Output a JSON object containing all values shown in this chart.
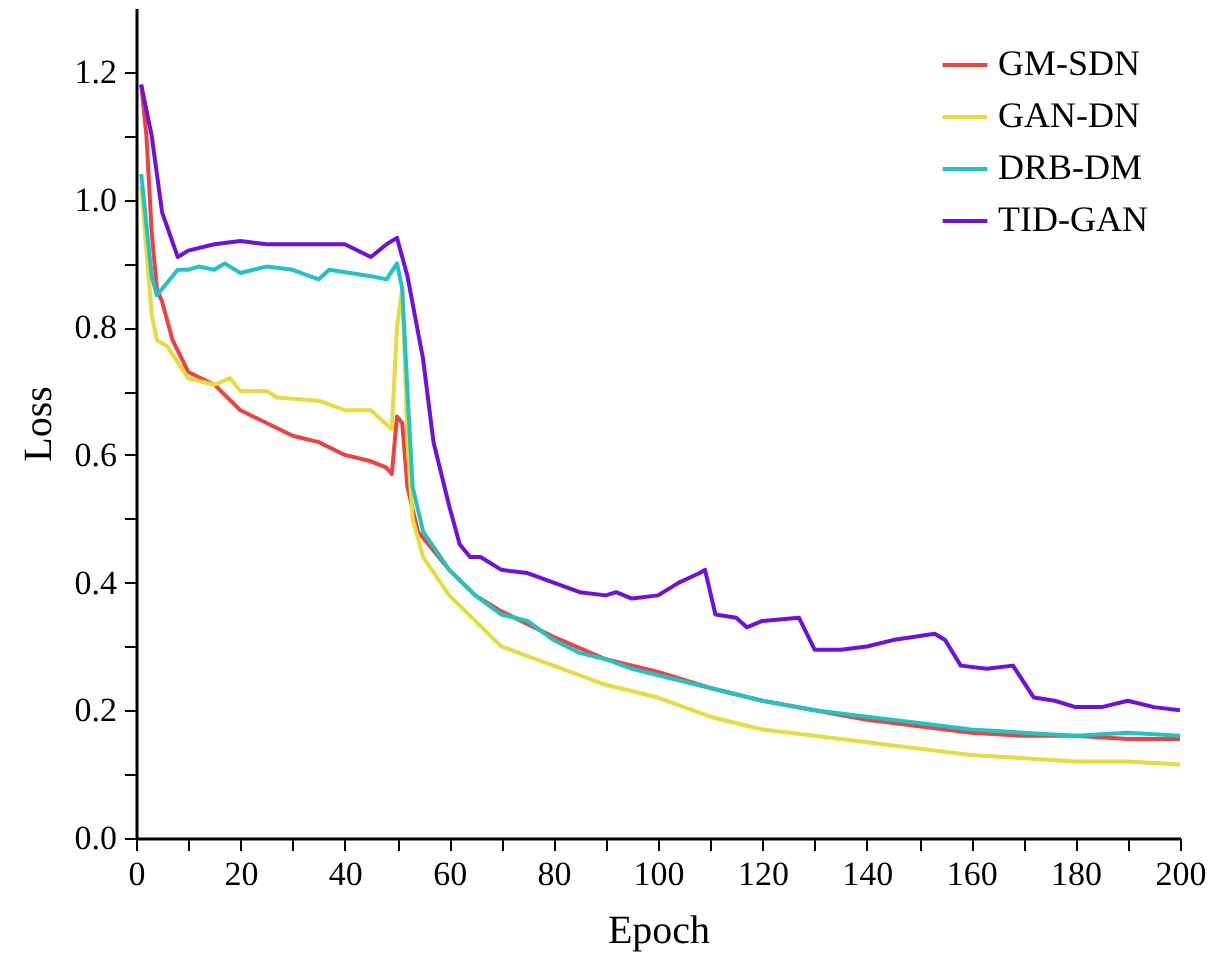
{
  "chart_data": {
    "type": "line",
    "xlabel": "Epoch",
    "ylabel": "Loss",
    "legend": "top right",
    "grid": false,
    "xlim": [
      0,
      200
    ],
    "ylim": [
      0,
      1.3
    ],
    "xticks": [
      0,
      {
        "value": 10,
        "label": null
      },
      20,
      {
        "value": 30,
        "label": null
      },
      40,
      {
        "value": 50,
        "label": null
      },
      60,
      {
        "value": 70,
        "label": null
      },
      80,
      {
        "value": 90,
        "label": null
      },
      100,
      {
        "value": 110,
        "label": null
      },
      120,
      {
        "value": 130,
        "label": null
      },
      140,
      {
        "value": 150,
        "label": null
      },
      160,
      {
        "value": 170,
        "label": null
      },
      180,
      {
        "value": 190,
        "label": null
      },
      200
    ],
    "yticks": [
      {
        "value": 0,
        "label": "0.0"
      },
      {
        "value": 0.1,
        "label": null
      },
      {
        "value": 0.2,
        "label": "0.2"
      },
      {
        "value": 0.3,
        "label": null
      },
      {
        "value": 0.4,
        "label": "0.4"
      },
      {
        "value": 0.5,
        "label": null
      },
      {
        "value": 0.6,
        "label": "0.6"
      },
      {
        "value": 0.7,
        "label": null
      },
      {
        "value": 0.8,
        "label": "0.8"
      },
      {
        "value": 0.9,
        "label": null
      },
      {
        "value": 1.0,
        "label": "1.0"
      },
      {
        "value": 1.1,
        "label": null
      },
      {
        "value": 1.2,
        "label": "1.2"
      }
    ],
    "series": [
      {
        "name": "GM-SDN",
        "color": "#f04040",
        "x": [
          1,
          2,
          3,
          4,
          5,
          7,
          10,
          15,
          20,
          25,
          30,
          35,
          40,
          45,
          48,
          49,
          50,
          51,
          52,
          54,
          60,
          65,
          70,
          80,
          90,
          100,
          110,
          120,
          130,
          140,
          150,
          160,
          170,
          180,
          190,
          200
        ],
        "values": [
          1.18,
          1.1,
          0.95,
          0.86,
          0.84,
          0.78,
          0.73,
          0.71,
          0.67,
          0.65,
          0.63,
          0.62,
          0.6,
          0.59,
          0.58,
          0.57,
          0.66,
          0.65,
          0.55,
          0.48,
          0.42,
          0.38,
          0.355,
          0.315,
          0.28,
          0.26,
          0.235,
          0.215,
          0.2,
          0.185,
          0.175,
          0.165,
          0.16,
          0.16,
          0.155,
          0.155
        ]
      },
      {
        "name": "GAN-DN",
        "color": "#e6dc3c",
        "x": [
          1,
          3,
          4,
          6,
          10,
          15,
          18,
          20,
          25,
          27,
          35,
          40,
          45,
          49,
          50,
          51,
          52,
          53,
          55,
          60,
          65,
          70,
          75,
          80,
          90,
          100,
          110,
          120,
          130,
          140,
          150,
          160,
          170,
          180,
          190,
          200
        ],
        "values": [
          1.02,
          0.82,
          0.78,
          0.77,
          0.72,
          0.71,
          0.72,
          0.7,
          0.7,
          0.69,
          0.685,
          0.67,
          0.67,
          0.64,
          0.8,
          0.86,
          0.62,
          0.5,
          0.44,
          0.38,
          0.34,
          0.3,
          0.285,
          0.27,
          0.24,
          0.22,
          0.19,
          0.17,
          0.16,
          0.15,
          0.14,
          0.13,
          0.125,
          0.12,
          0.12,
          0.115
        ]
      },
      {
        "name": "DRB-DM",
        "color": "#20c4c4",
        "x": [
          1,
          3,
          4,
          6,
          8,
          10,
          12,
          15,
          17,
          20,
          25,
          30,
          35,
          37,
          45,
          48,
          50,
          51,
          52,
          53,
          55,
          60,
          65,
          70,
          75,
          80,
          85,
          90,
          95,
          100,
          110,
          120,
          130,
          140,
          150,
          160,
          170,
          180,
          190,
          200
        ],
        "values": [
          1.04,
          0.88,
          0.85,
          0.87,
          0.89,
          0.89,
          0.895,
          0.89,
          0.9,
          0.885,
          0.895,
          0.89,
          0.875,
          0.89,
          0.88,
          0.875,
          0.9,
          0.86,
          0.7,
          0.55,
          0.48,
          0.42,
          0.38,
          0.35,
          0.34,
          0.31,
          0.29,
          0.28,
          0.265,
          0.255,
          0.235,
          0.215,
          0.2,
          0.19,
          0.18,
          0.17,
          0.165,
          0.16,
          0.165,
          0.16
        ]
      },
      {
        "name": "TID-GAN",
        "color": "#7010e0",
        "x": [
          1,
          3,
          5,
          8,
          10,
          15,
          20,
          25,
          30,
          35,
          40,
          45,
          48,
          50,
          52,
          55,
          57,
          60,
          62,
          64,
          66,
          70,
          75,
          80,
          85,
          90,
          92,
          95,
          100,
          104,
          108,
          109,
          111,
          115,
          117,
          120,
          127,
          130,
          135,
          140,
          145,
          153,
          155,
          158,
          163,
          168,
          172,
          176,
          180,
          185,
          190,
          195,
          200
        ],
        "values": [
          1.18,
          1.1,
          0.98,
          0.91,
          0.92,
          0.93,
          0.935,
          0.93,
          0.93,
          0.93,
          0.93,
          0.91,
          0.93,
          0.94,
          0.88,
          0.75,
          0.62,
          0.52,
          0.46,
          0.44,
          0.44,
          0.42,
          0.415,
          0.4,
          0.385,
          0.38,
          0.385,
          0.375,
          0.38,
          0.4,
          0.415,
          0.42,
          0.35,
          0.345,
          0.33,
          0.34,
          0.345,
          0.295,
          0.295,
          0.3,
          0.31,
          0.32,
          0.31,
          0.27,
          0.265,
          0.27,
          0.22,
          0.215,
          0.205,
          0.205,
          0.215,
          0.205,
          0.2
        ]
      }
    ]
  }
}
